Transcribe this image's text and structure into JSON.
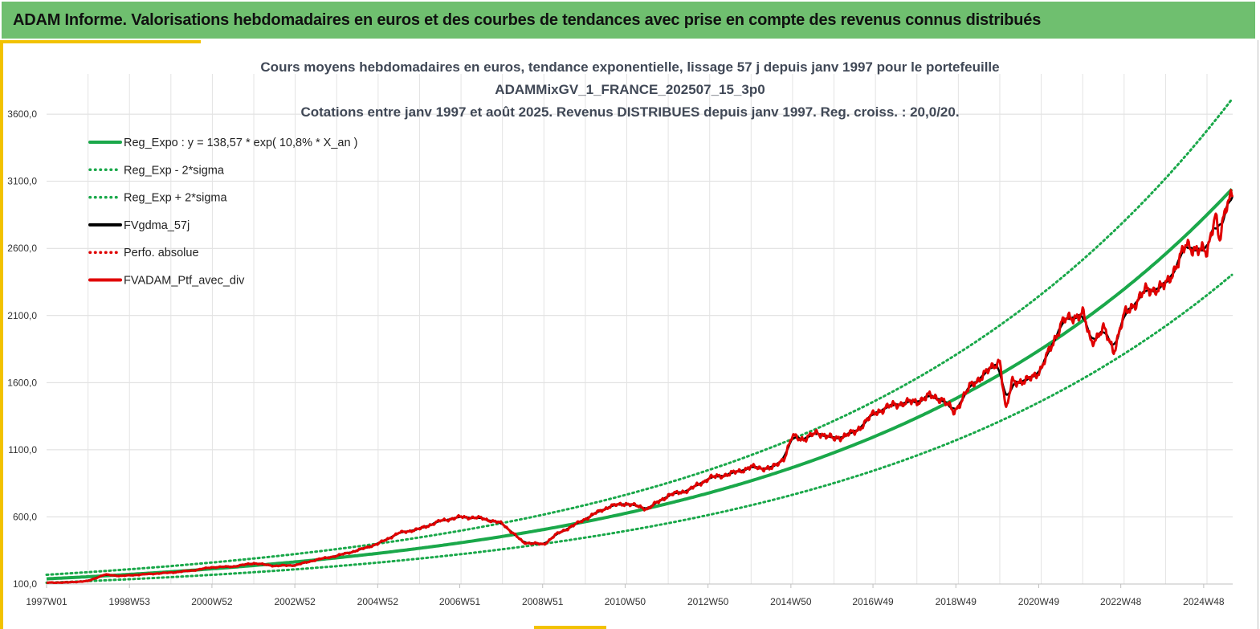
{
  "banner": {
    "title": "ADAM Informe. Valorisations hebdomadaires en euros et des courbes de tendances avec prise en compte des revenus connus distribués"
  },
  "chart_data": {
    "type": "line",
    "title_lines": [
      "Cours moyens hebdomadaires  en euros, tendance exponentielle, lissage 57 j depuis janv 1997 pour le portefeuille",
      "ADAMMixGV_1_FRANCE_202507_15_3p0",
      "Cotations entre janv 1997 et août 2025. Revenus DISTRIBUES depuis janv 1997. Reg. croiss. : 20,0/20."
    ],
    "xlabel": "",
    "ylabel": "",
    "x_range": [
      1997.0,
      2025.62
    ],
    "ylim": [
      100,
      3900
    ],
    "y_ticks": [
      {
        "value": 100,
        "label": "100,0"
      },
      {
        "value": 600,
        "label": "600,0"
      },
      {
        "value": 1100,
        "label": "1100,0"
      },
      {
        "value": 1600,
        "label": "1600,0"
      },
      {
        "value": 2100,
        "label": "2100,0"
      },
      {
        "value": 2600,
        "label": "2600,0"
      },
      {
        "value": 3100,
        "label": "3100,0"
      },
      {
        "value": 3600,
        "label": "3600,0"
      }
    ],
    "x_ticks": [
      {
        "value": 1997.0,
        "label": "1997W01"
      },
      {
        "value": 1999.0,
        "label": "1998W53"
      },
      {
        "value": 2000.99,
        "label": "2000W52"
      },
      {
        "value": 2002.99,
        "label": "2002W52"
      },
      {
        "value": 2004.99,
        "label": "2004W52"
      },
      {
        "value": 2006.97,
        "label": "2006W51"
      },
      {
        "value": 2008.97,
        "label": "2008W51"
      },
      {
        "value": 2010.96,
        "label": "2010W50"
      },
      {
        "value": 2012.96,
        "label": "2012W50"
      },
      {
        "value": 2014.96,
        "label": "2014W50"
      },
      {
        "value": 2016.94,
        "label": "2016W49"
      },
      {
        "value": 2018.94,
        "label": "2018W49"
      },
      {
        "value": 2020.94,
        "label": "2020W49"
      },
      {
        "value": 2022.92,
        "label": "2022W48"
      },
      {
        "value": 2024.92,
        "label": "2024W48"
      }
    ],
    "grid": true,
    "legend_position": "top-left",
    "regression": {
      "a": 138.57,
      "b": 0.108,
      "sigma_factor": 0.79,
      "sigma_factor_upper": 1.22
    },
    "series": [
      {
        "name": "Reg_Expo : y = 138,57 * exp( 10,8% *  X_an )",
        "color": "#1aa84a",
        "style": "solid",
        "kind": "reg"
      },
      {
        "name": "Reg_Exp - 2*sigma",
        "color": "#1aa84a",
        "style": "dotted",
        "kind": "reg_low"
      },
      {
        "name": "Reg_Exp + 2*sigma",
        "color": "#1aa84a",
        "style": "dotted",
        "kind": "reg_high"
      },
      {
        "name": "FVgdma_57j",
        "color": "#000000",
        "style": "solid",
        "kind": "smooth"
      },
      {
        "name": "Perfo. absolue",
        "color": "#e00000",
        "style": "dotted",
        "kind": "none"
      },
      {
        "name": "FVADAM_Ptf_avec_div",
        "color": "#e00000",
        "style": "solid",
        "kind": "price"
      }
    ],
    "price_points": {
      "x": [
        1997.0,
        1997.5,
        1998.0,
        1998.4,
        1998.8,
        1999.5,
        2000.0,
        2000.5,
        2001.0,
        2001.5,
        2002.0,
        2002.5,
        2003.0,
        2003.5,
        2004.0,
        2004.5,
        2005.0,
        2005.5,
        2006.0,
        2006.5,
        2007.0,
        2007.5,
        2008.0,
        2008.5,
        2009.0,
        2009.3,
        2009.8,
        2010.2,
        2010.6,
        2011.0,
        2011.5,
        2012.0,
        2012.5,
        2013.0,
        2013.5,
        2014.0,
        2014.5,
        2014.8,
        2015.0,
        2015.3,
        2015.6,
        2016.0,
        2016.5,
        2017.0,
        2017.5,
        2018.0,
        2018.3,
        2018.6,
        2018.9,
        2019.3,
        2019.7,
        2020.0,
        2020.15,
        2020.3,
        2020.6,
        2021.0,
        2021.5,
        2022.0,
        2022.2,
        2022.5,
        2022.75,
        2023.0,
        2023.5,
        2024.0,
        2024.5,
        2024.75,
        2025.0,
        2025.2,
        2025.3,
        2025.5,
        2025.62
      ],
      "y": [
        110,
        112,
        122,
        170,
        160,
        175,
        185,
        200,
        225,
        230,
        255,
        235,
        240,
        280,
        310,
        350,
        400,
        480,
        510,
        570,
        600,
        590,
        550,
        410,
        395,
        470,
        550,
        620,
        680,
        700,
        660,
        760,
        800,
        890,
        920,
        970,
        960,
        1040,
        1200,
        1180,
        1230,
        1180,
        1230,
        1380,
        1440,
        1460,
        1500,
        1480,
        1380,
        1580,
        1680,
        1770,
        1380,
        1620,
        1600,
        1700,
        2050,
        2120,
        1900,
        2000,
        1840,
        2100,
        2280,
        2320,
        2620,
        2600,
        2560,
        2880,
        2650,
        2950,
        3040
      ]
    }
  }
}
